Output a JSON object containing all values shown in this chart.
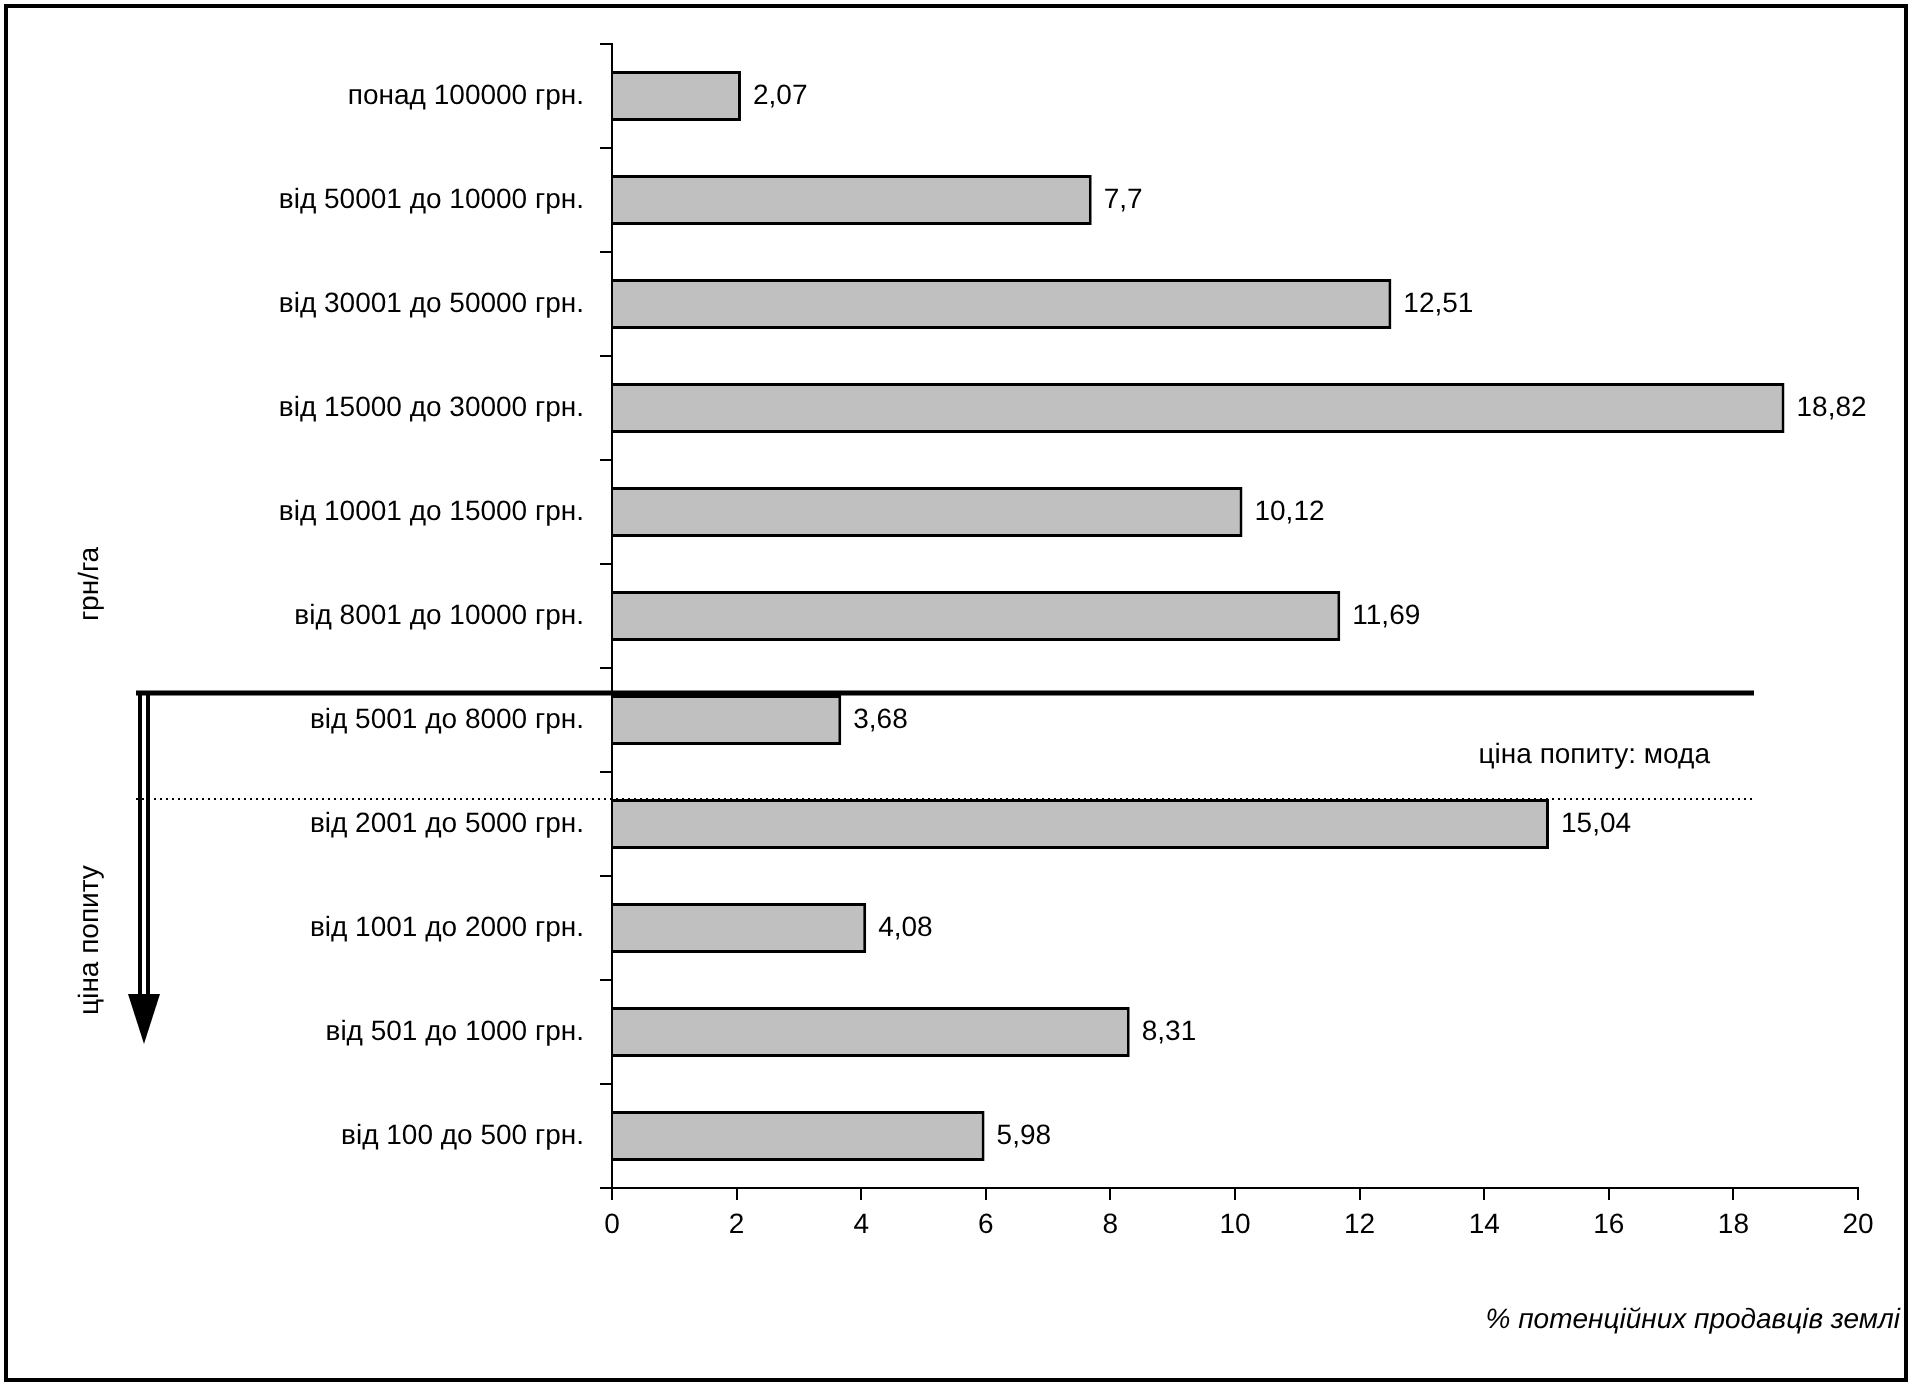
{
  "chart_data": {
    "type": "bar",
    "orientation": "horizontal",
    "categories": [
      "понад 100000 грн.",
      "від 50001 до 10000 грн.",
      "від 30001 до 50000 грн.",
      "від 15000 до 30000 грн.",
      "від 10001 до 15000 грн.",
      "від 8001 до 10000 грн.",
      "від 5001 до 8000 грн.",
      "від 2001 до 5000 грн.",
      "від 1001 до 2000 грн.",
      "від 501 до 1000 грн.",
      "від 100 до 500 грн."
    ],
    "values": [
      2.07,
      7.7,
      12.51,
      18.82,
      10.12,
      11.69,
      3.68,
      15.04,
      4.08,
      8.31,
      5.98
    ],
    "value_labels": [
      "2,07",
      "7,7",
      "12,51",
      "18,82",
      "10,12",
      "11,69",
      "3,68",
      "15,04",
      "4,08",
      "8,31",
      "5,98"
    ],
    "color": "#c0c0c0",
    "xlim": [
      0,
      20
    ],
    "xticks": [
      0,
      2,
      4,
      6,
      8,
      10,
      12,
      14,
      16,
      18,
      20
    ],
    "xlabel": "% потенційних продавців землі",
    "annotations": [
      "грн/га",
      "ціна попиту"
    ],
    "ref_lines": [
      {
        "axis": "y",
        "value": "від 5001 до 8000 грн.",
        "line_style": "solid"
      },
      {
        "axis": "y",
        "value": "від 2001 до 5000 грн.",
        "label": "ціна попиту: мода",
        "line_style": "dotted"
      }
    ],
    "grid": false,
    "legend": false
  }
}
